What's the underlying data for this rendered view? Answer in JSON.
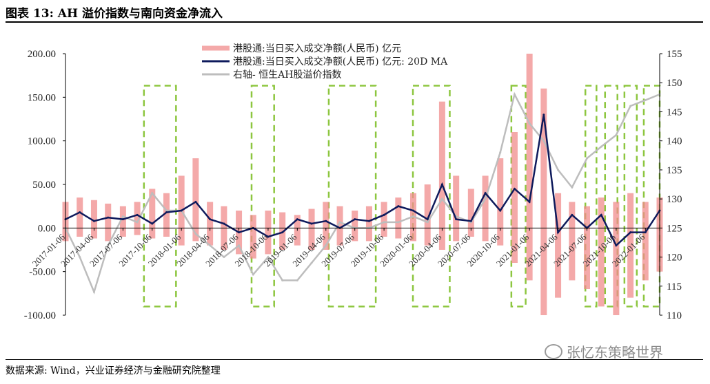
{
  "header": {
    "title": "图表 13:  AH 溢价指数与南向资金净流入"
  },
  "footer": {
    "source": "数据来源: Wind，兴业证券经济与金融研究院整理"
  },
  "watermark": {
    "text": "张忆东策略世界"
  },
  "chart_data": {
    "type": "line",
    "title": "图表 13:  AH 溢价指数与南向资金净流入",
    "y_left": {
      "ylim": [
        -100,
        200
      ],
      "ticks": [
        "200.00",
        "150.00",
        "100.00",
        "50.00",
        "0.00",
        "-50.00",
        "-100.00"
      ]
    },
    "y_right": {
      "ylim": [
        110,
        155
      ],
      "ticks": [
        "155",
        "150",
        "145",
        "140",
        "135",
        "130",
        "125",
        "120",
        "115",
        "110"
      ]
    },
    "x_ticks": [
      "2017-01-06",
      "2017-04-06",
      "2017-07-06",
      "2017-10-06",
      "2018-01-06",
      "2018-04-06",
      "2018-07-06",
      "2018-10-06",
      "2019-01-06",
      "2019-04-06",
      "2019-07-06",
      "2019-10-06",
      "2020-01-06",
      "2020-04-06",
      "2020-07-06",
      "2020-10-06",
      "2021-01-06",
      "2021-04-06",
      "2021-07-06",
      "2021-10-06",
      "2022-01-06"
    ],
    "grid": false,
    "legend_position": "top-center",
    "series": [
      {
        "name": "港股通:当日买入成交净额(人民币) 亿元",
        "axis": "left",
        "style": "bar-area",
        "color": "#f08c8c",
        "x": [
          "2017-01-06",
          "2017-02-20",
          "2017-04-06",
          "2017-05-20",
          "2017-07-06",
          "2017-08-20",
          "2017-10-06",
          "2017-11-20",
          "2018-01-06",
          "2018-02-20",
          "2018-04-06",
          "2018-05-20",
          "2018-07-06",
          "2018-08-20",
          "2018-10-06",
          "2018-11-20",
          "2019-01-06",
          "2019-02-20",
          "2019-04-06",
          "2019-05-20",
          "2019-07-06",
          "2019-08-20",
          "2019-10-06",
          "2019-11-20",
          "2020-01-06",
          "2020-02-20",
          "2020-04-06",
          "2020-05-20",
          "2020-07-06",
          "2020-08-20",
          "2020-10-06",
          "2020-11-20",
          "2021-01-06",
          "2021-02-20",
          "2021-04-06",
          "2021-05-20",
          "2021-07-06",
          "2021-08-20",
          "2021-10-06",
          "2021-11-20",
          "2022-01-06",
          "2022-02-20"
        ],
        "high": [
          30,
          35,
          32,
          28,
          25,
          30,
          45,
          40,
          60,
          80,
          30,
          25,
          20,
          15,
          20,
          18,
          15,
          22,
          30,
          25,
          20,
          25,
          30,
          35,
          40,
          50,
          145,
          60,
          45,
          60,
          80,
          110,
          200,
          160,
          40,
          30,
          25,
          35,
          30,
          40,
          30,
          35
        ],
        "low": [
          -15,
          -10,
          -12,
          -15,
          -10,
          -8,
          -12,
          -10,
          -20,
          -15,
          -20,
          -25,
          -30,
          -35,
          -30,
          -25,
          -20,
          -25,
          -25,
          -20,
          -15,
          -15,
          -10,
          -12,
          -15,
          -20,
          -25,
          -15,
          -10,
          -15,
          -20,
          -40,
          -60,
          -100,
          -80,
          -60,
          -70,
          -90,
          -100,
          -80,
          -60,
          -50
        ]
      },
      {
        "name": "港股通:当日买入成交净额(人民币) 亿元:  20D MA",
        "axis": "left",
        "style": "line",
        "color": "#0e1a5c",
        "x": [
          "2017-01-06",
          "2017-02-20",
          "2017-04-06",
          "2017-05-20",
          "2017-07-06",
          "2017-08-20",
          "2017-10-06",
          "2017-11-20",
          "2018-01-06",
          "2018-02-20",
          "2018-04-06",
          "2018-05-20",
          "2018-07-06",
          "2018-08-20",
          "2018-10-06",
          "2018-11-20",
          "2019-01-06",
          "2019-02-20",
          "2019-04-06",
          "2019-05-20",
          "2019-07-06",
          "2019-08-20",
          "2019-10-06",
          "2019-11-20",
          "2020-01-06",
          "2020-02-20",
          "2020-04-06",
          "2020-05-20",
          "2020-07-06",
          "2020-08-20",
          "2020-10-06",
          "2020-11-20",
          "2021-01-06",
          "2021-02-20",
          "2021-04-06",
          "2021-05-20",
          "2021-07-06",
          "2021-08-20",
          "2021-10-06",
          "2021-11-20",
          "2022-01-06",
          "2022-02-20"
        ],
        "values": [
          10,
          18,
          8,
          12,
          10,
          15,
          5,
          18,
          20,
          30,
          10,
          5,
          -5,
          0,
          -10,
          -5,
          10,
          5,
          8,
          0,
          10,
          8,
          15,
          25,
          20,
          10,
          50,
          10,
          8,
          40,
          20,
          45,
          30,
          130,
          -5,
          15,
          0,
          15,
          -20,
          -5,
          -5,
          20
        ]
      },
      {
        "name": "右轴- 恒生AH股溢价指数",
        "axis": "right",
        "style": "line",
        "color": "#bdbdbd",
        "x": [
          "2017-01-06",
          "2017-02-20",
          "2017-04-06",
          "2017-05-20",
          "2017-07-06",
          "2017-08-20",
          "2017-10-06",
          "2017-11-20",
          "2018-01-06",
          "2018-02-20",
          "2018-04-06",
          "2018-05-20",
          "2018-07-06",
          "2018-08-20",
          "2018-10-06",
          "2018-11-20",
          "2019-01-06",
          "2019-02-20",
          "2019-04-06",
          "2019-05-20",
          "2019-07-06",
          "2019-08-20",
          "2019-10-06",
          "2019-11-20",
          "2020-01-06",
          "2020-02-20",
          "2020-04-06",
          "2020-05-20",
          "2020-07-06",
          "2020-08-20",
          "2020-10-06",
          "2020-11-20",
          "2021-01-06",
          "2021-02-20",
          "2021-04-06",
          "2021-05-20",
          "2021-07-06",
          "2021-08-20",
          "2021-10-06",
          "2021-11-20",
          "2022-01-06",
          "2022-02-20"
        ],
        "values": [
          125,
          120,
          114,
          122,
          127,
          126,
          131,
          128,
          128,
          124,
          122,
          120,
          122,
          117,
          120,
          116,
          116,
          119,
          122,
          126,
          125,
          125,
          126,
          126,
          127,
          126,
          130,
          127,
          126,
          130,
          138,
          148,
          143,
          140,
          135,
          132,
          137,
          139,
          141,
          146,
          147,
          148
        ]
      }
    ],
    "highlight_boxes": [
      {
        "from": "2017-09-10",
        "to": "2017-12-20"
      },
      {
        "from": "2018-08-15",
        "to": "2018-10-25"
      },
      {
        "from": "2019-04-15",
        "to": "2019-09-10"
      },
      {
        "from": "2020-01-05",
        "to": "2020-04-30"
      },
      {
        "from": "2020-11-10",
        "to": "2020-12-25"
      },
      {
        "from": "2021-07-01",
        "to": "2021-08-05"
      },
      {
        "from": "2021-09-01",
        "to": "2021-10-10"
      },
      {
        "from": "2021-11-01",
        "to": "2021-12-10"
      },
      {
        "from": "2022-01-01",
        "to": "2022-02-20"
      }
    ]
  },
  "style": {
    "pink": "#f08c8c",
    "navy": "#0e1a5c",
    "gray": "#bdbdbd",
    "box_green": "#8dc63f"
  }
}
